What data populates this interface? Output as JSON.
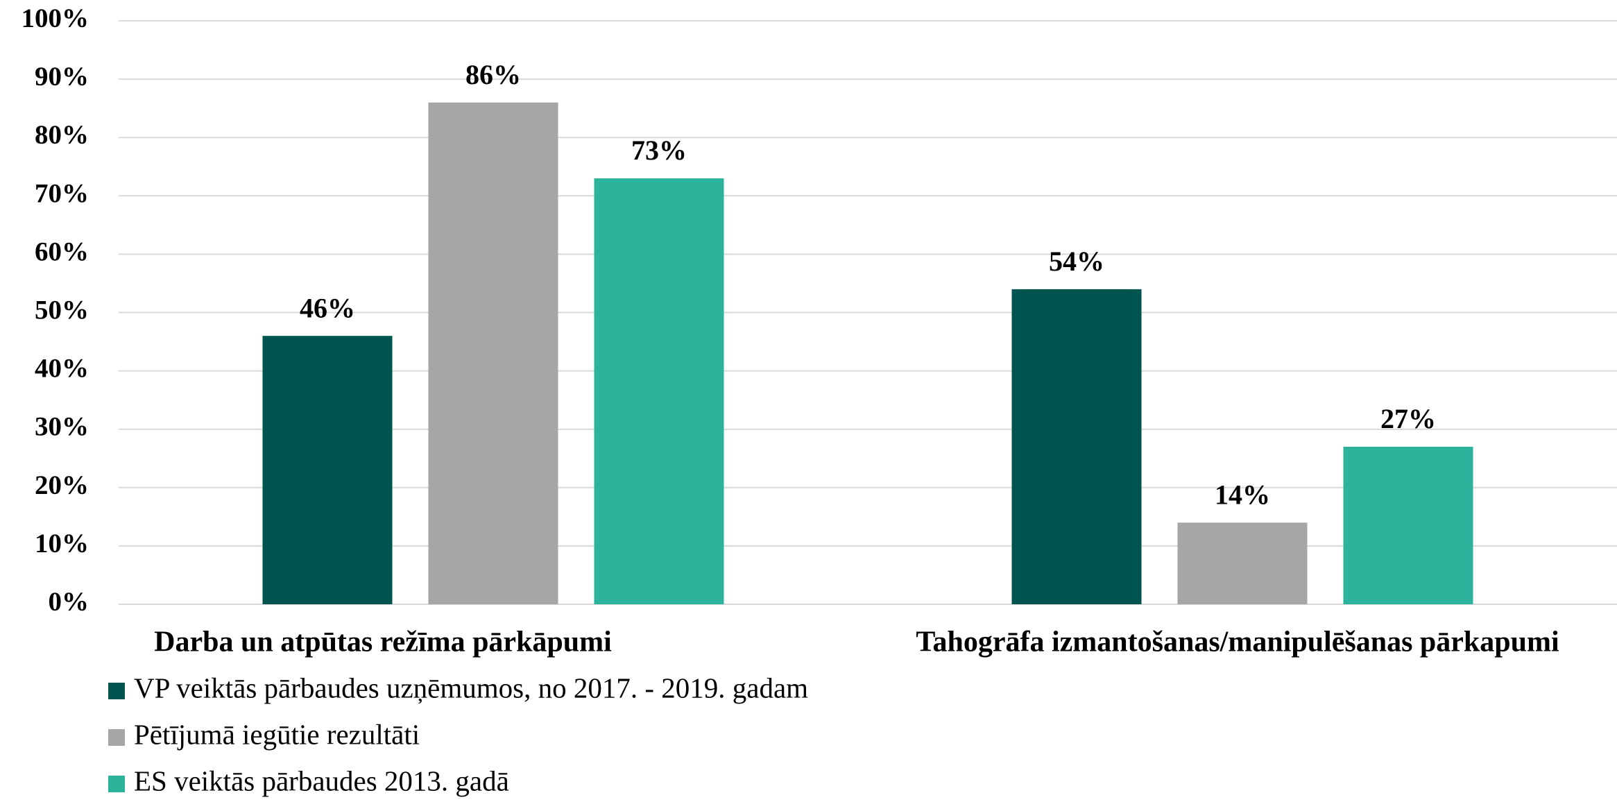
{
  "chart_data": {
    "type": "bar",
    "categories": [
      "Darba un atpūtas režīma pārkāpumi",
      "Tahogrāfa izmantošanas/manipulēšanas pārkapumi"
    ],
    "series": [
      {
        "name": "VP veiktās pārbaudes uzņēmumos, no 2017. - 2019. gadam",
        "color": "#00544f",
        "values": [
          46,
          54
        ],
        "value_labels": [
          "46%",
          "54%"
        ]
      },
      {
        "name": "Pētījumā iegūtie rezultāti",
        "color": "#a6a6a6",
        "values": [
          86,
          14
        ],
        "value_labels": [
          "86%",
          "14%"
        ]
      },
      {
        "name": "ES veiktās pārbaudes 2013. gadā",
        "color": "#2bb39c",
        "values": [
          73,
          27
        ],
        "value_labels": [
          "73%",
          "27%"
        ]
      }
    ],
    "ylim": [
      0,
      100
    ],
    "yticks": [
      {
        "value": 0,
        "label": "0%"
      },
      {
        "value": 10,
        "label": "10%"
      },
      {
        "value": 20,
        "label": "20%"
      },
      {
        "value": 30,
        "label": "30%"
      },
      {
        "value": 40,
        "label": "40%"
      },
      {
        "value": 50,
        "label": "50%"
      },
      {
        "value": 60,
        "label": "60%"
      },
      {
        "value": 70,
        "label": "70%"
      },
      {
        "value": 80,
        "label": "80%"
      },
      {
        "value": 90,
        "label": "90%"
      },
      {
        "value": 100,
        "label": "100%"
      }
    ],
    "grid": true,
    "legend": "bottom"
  }
}
